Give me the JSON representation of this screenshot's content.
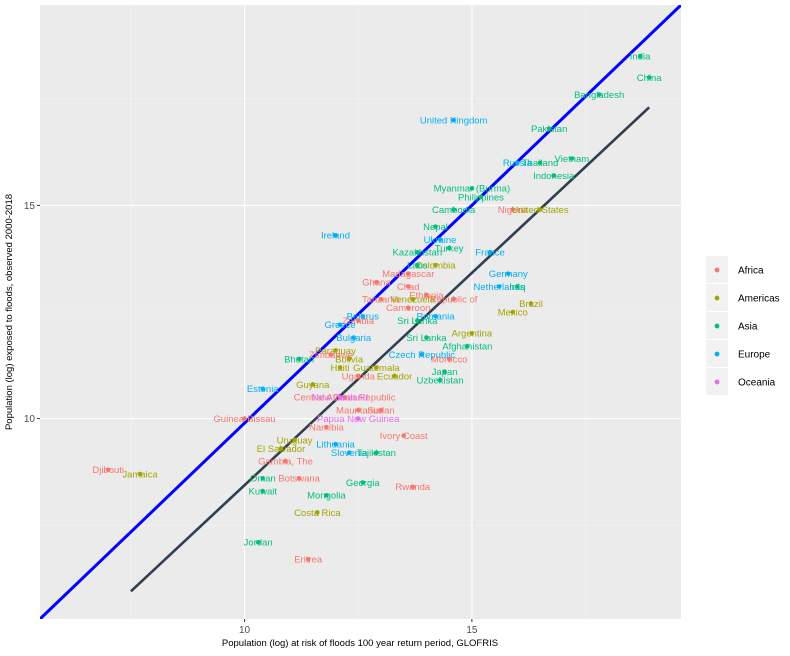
{
  "chart_data": {
    "type": "scatter",
    "xlabel": "Population (log) at risk of floods 100  year return period, GLOFRIS",
    "ylabel": "Population (log) exposed to floods, observed 2000-2018",
    "xlim": [
      5.5,
      19.6
    ],
    "ylim": [
      5.3,
      19.7
    ],
    "x_ticks": [
      10,
      15
    ],
    "y_ticks": [
      10,
      15
    ],
    "grid": true,
    "legend_position": "right",
    "legend": [
      {
        "name": "Africa",
        "color": "#F8766D"
      },
      {
        "name": "Americas",
        "color": "#A3A500"
      },
      {
        "name": "Asia",
        "color": "#00BF7D"
      },
      {
        "name": "Europe",
        "color": "#00B0F6"
      },
      {
        "name": "Oceania",
        "color": "#E76BF3"
      }
    ],
    "lines": [
      {
        "name": "identity",
        "color": "#0000FF",
        "x": [
          5.5,
          19.6
        ],
        "y": [
          5.3,
          19.7
        ]
      },
      {
        "name": "fit",
        "color": "#2F3F4F",
        "x": [
          7.5,
          18.9
        ],
        "y": [
          5.95,
          17.3
        ]
      }
    ],
    "points": [
      {
        "label": "India",
        "x": 18.7,
        "y": 18.5,
        "region": "Asia"
      },
      {
        "label": "China",
        "x": 18.9,
        "y": 18.0,
        "region": "Asia"
      },
      {
        "label": "Bangladesh",
        "x": 17.8,
        "y": 17.6,
        "region": "Asia"
      },
      {
        "label": "United Kingdom",
        "x": 14.6,
        "y": 17.0,
        "region": "Europe"
      },
      {
        "label": "Pakistan",
        "x": 16.7,
        "y": 16.8,
        "region": "Asia"
      },
      {
        "label": "Vietnam",
        "x": 17.2,
        "y": 16.1,
        "region": "Asia"
      },
      {
        "label": "Thailand",
        "x": 16.5,
        "y": 16.0,
        "region": "Asia"
      },
      {
        "label": "Russia",
        "x": 16.0,
        "y": 16.0,
        "region": "Europe"
      },
      {
        "label": "Indonesia",
        "x": 16.8,
        "y": 15.7,
        "region": "Asia"
      },
      {
        "label": "Myanmar (Burma)",
        "x": 15.0,
        "y": 15.4,
        "region": "Asia"
      },
      {
        "label": "Philippines",
        "x": 15.2,
        "y": 15.2,
        "region": "Asia"
      },
      {
        "label": "Cambodia",
        "x": 14.6,
        "y": 14.9,
        "region": "Asia"
      },
      {
        "label": "Nigeria",
        "x": 15.9,
        "y": 14.9,
        "region": "Africa"
      },
      {
        "label": "United States",
        "x": 16.5,
        "y": 14.9,
        "region": "Americas"
      },
      {
        "label": "Nepal",
        "x": 14.2,
        "y": 14.5,
        "region": "Asia"
      },
      {
        "label": "Ireland",
        "x": 12.0,
        "y": 14.3,
        "region": "Europe"
      },
      {
        "label": "Ukraine",
        "x": 14.3,
        "y": 14.2,
        "region": "Europe"
      },
      {
        "label": "Turkey",
        "x": 14.5,
        "y": 14.0,
        "region": "Asia"
      },
      {
        "label": "France",
        "x": 15.4,
        "y": 13.9,
        "region": "Europe"
      },
      {
        "label": "Kazakhstan",
        "x": 13.8,
        "y": 13.9,
        "region": "Asia"
      },
      {
        "label": "Colombia",
        "x": 14.2,
        "y": 13.6,
        "region": "Americas"
      },
      {
        "label": "Laos",
        "x": 13.8,
        "y": 13.6,
        "region": "Asia"
      },
      {
        "label": "Madagascar",
        "x": 13.6,
        "y": 13.4,
        "region": "Africa"
      },
      {
        "label": "Germany",
        "x": 15.8,
        "y": 13.4,
        "region": "Europe"
      },
      {
        "label": "Ghana",
        "x": 12.9,
        "y": 13.2,
        "region": "Africa"
      },
      {
        "label": "Chad",
        "x": 13.6,
        "y": 13.1,
        "region": "Africa"
      },
      {
        "label": "Netherlands",
        "x": 15.6,
        "y": 13.1,
        "region": "Europe"
      },
      {
        "label": "Iraq",
        "x": 16.0,
        "y": 13.1,
        "region": "Asia"
      },
      {
        "label": "Ethiopia",
        "x": 14.0,
        "y": 12.9,
        "region": "Africa"
      },
      {
        "label": "Tanzania",
        "x": 13.0,
        "y": 12.8,
        "region": "Africa"
      },
      {
        "label": "Venezuela",
        "x": 13.7,
        "y": 12.8,
        "region": "Americas"
      },
      {
        "label": "Republic of",
        "x": 14.6,
        "y": 12.8,
        "region": "Africa"
      },
      {
        "label": "Brazil",
        "x": 16.3,
        "y": 12.7,
        "region": "Americas"
      },
      {
        "label": "Cameroon",
        "x": 13.6,
        "y": 12.6,
        "region": "Africa"
      },
      {
        "label": "Mexico",
        "x": 15.9,
        "y": 12.5,
        "region": "Americas"
      },
      {
        "label": "Romania",
        "x": 14.2,
        "y": 12.4,
        "region": "Europe"
      },
      {
        "label": "Sri Lanka",
        "x": 13.8,
        "y": 12.3,
        "region": "Asia"
      },
      {
        "label": "Belarus",
        "x": 12.6,
        "y": 12.4,
        "region": "Europe"
      },
      {
        "label": "Zambia",
        "x": 12.5,
        "y": 12.3,
        "region": "Africa"
      },
      {
        "label": "Greece",
        "x": 12.1,
        "y": 12.2,
        "region": "Europe"
      },
      {
        "label": "Argentina",
        "x": 15.0,
        "y": 12.0,
        "region": "Americas"
      },
      {
        "label": "Bulgaria",
        "x": 12.4,
        "y": 11.9,
        "region": "Europe"
      },
      {
        "label": "Sri Lanka",
        "x": 14.0,
        "y": 11.9,
        "region": "Asia"
      },
      {
        "label": "Afghanistan",
        "x": 14.9,
        "y": 11.7,
        "region": "Asia"
      },
      {
        "label": "Paraguay",
        "x": 12.0,
        "y": 11.6,
        "region": "Americas"
      },
      {
        "label": "Zimbabwe",
        "x": 11.9,
        "y": 11.5,
        "region": "Africa"
      },
      {
        "label": "Czech Republic",
        "x": 13.9,
        "y": 11.5,
        "region": "Europe"
      },
      {
        "label": "Bhutan",
        "x": 11.2,
        "y": 11.4,
        "region": "Asia"
      },
      {
        "label": "Bolivia",
        "x": 12.3,
        "y": 11.4,
        "region": "Americas"
      },
      {
        "label": "Morocco",
        "x": 14.5,
        "y": 11.4,
        "region": "Africa"
      },
      {
        "label": "Haiti",
        "x": 12.1,
        "y": 11.2,
        "region": "Americas"
      },
      {
        "label": "Guatemala",
        "x": 12.9,
        "y": 11.2,
        "region": "Americas"
      },
      {
        "label": "Japan",
        "x": 14.4,
        "y": 11.1,
        "region": "Asia"
      },
      {
        "label": "Uganda",
        "x": 12.5,
        "y": 11.0,
        "region": "Africa"
      },
      {
        "label": "Ecuador",
        "x": 13.3,
        "y": 11.0,
        "region": "Americas"
      },
      {
        "label": "Uzbekistan",
        "x": 14.3,
        "y": 10.9,
        "region": "Asia"
      },
      {
        "label": "Guyana",
        "x": 11.5,
        "y": 10.8,
        "region": "Americas"
      },
      {
        "label": "Estonia",
        "x": 10.4,
        "y": 10.7,
        "region": "Europe"
      },
      {
        "label": "Central African Republic",
        "x": 12.2,
        "y": 10.5,
        "region": "Africa"
      },
      {
        "label": "New Zealand",
        "x": 12.1,
        "y": 10.5,
        "region": "Oceania"
      },
      {
        "label": "Mauritania",
        "x": 12.5,
        "y": 10.2,
        "region": "Africa"
      },
      {
        "label": "Sudan",
        "x": 13.0,
        "y": 10.2,
        "region": "Africa"
      },
      {
        "label": "Papua New Guinea",
        "x": 12.5,
        "y": 10.0,
        "region": "Oceania"
      },
      {
        "label": "Guinea-Bissau",
        "x": 10.0,
        "y": 10.0,
        "region": "Africa"
      },
      {
        "label": "Namibia",
        "x": 11.8,
        "y": 9.8,
        "region": "Africa"
      },
      {
        "label": "Uruguay",
        "x": 11.1,
        "y": 9.5,
        "region": "Americas"
      },
      {
        "label": "Ivory Coast",
        "x": 13.5,
        "y": 9.6,
        "region": "Africa"
      },
      {
        "label": "Lithuania",
        "x": 12.0,
        "y": 9.4,
        "region": "Europe"
      },
      {
        "label": "El Salvador",
        "x": 10.8,
        "y": 9.3,
        "region": "Americas"
      },
      {
        "label": "Slovenia",
        "x": 12.3,
        "y": 9.2,
        "region": "Europe"
      },
      {
        "label": "Tajikistan",
        "x": 12.9,
        "y": 9.2,
        "region": "Asia"
      },
      {
        "label": "Gambia, The",
        "x": 10.9,
        "y": 9.0,
        "region": "Africa"
      },
      {
        "label": "Djibouti",
        "x": 7.0,
        "y": 8.8,
        "region": "Africa"
      },
      {
        "label": "Jamaica",
        "x": 7.7,
        "y": 8.7,
        "region": "Americas"
      },
      {
        "label": "Botswana",
        "x": 11.2,
        "y": 8.6,
        "region": "Africa"
      },
      {
        "label": "Oman",
        "x": 10.4,
        "y": 8.6,
        "region": "Asia"
      },
      {
        "label": "Georgia",
        "x": 12.6,
        "y": 8.5,
        "region": "Asia"
      },
      {
        "label": "Kuwait",
        "x": 10.4,
        "y": 8.3,
        "region": "Asia"
      },
      {
        "label": "Rwanda",
        "x": 13.7,
        "y": 8.4,
        "region": "Africa"
      },
      {
        "label": "Mongolia",
        "x": 11.8,
        "y": 8.2,
        "region": "Asia"
      },
      {
        "label": "Costa Rica",
        "x": 11.6,
        "y": 7.8,
        "region": "Americas"
      },
      {
        "label": "Jordan",
        "x": 10.3,
        "y": 7.1,
        "region": "Asia"
      },
      {
        "label": "Eritrea",
        "x": 11.4,
        "y": 6.7,
        "region": "Africa"
      }
    ]
  }
}
